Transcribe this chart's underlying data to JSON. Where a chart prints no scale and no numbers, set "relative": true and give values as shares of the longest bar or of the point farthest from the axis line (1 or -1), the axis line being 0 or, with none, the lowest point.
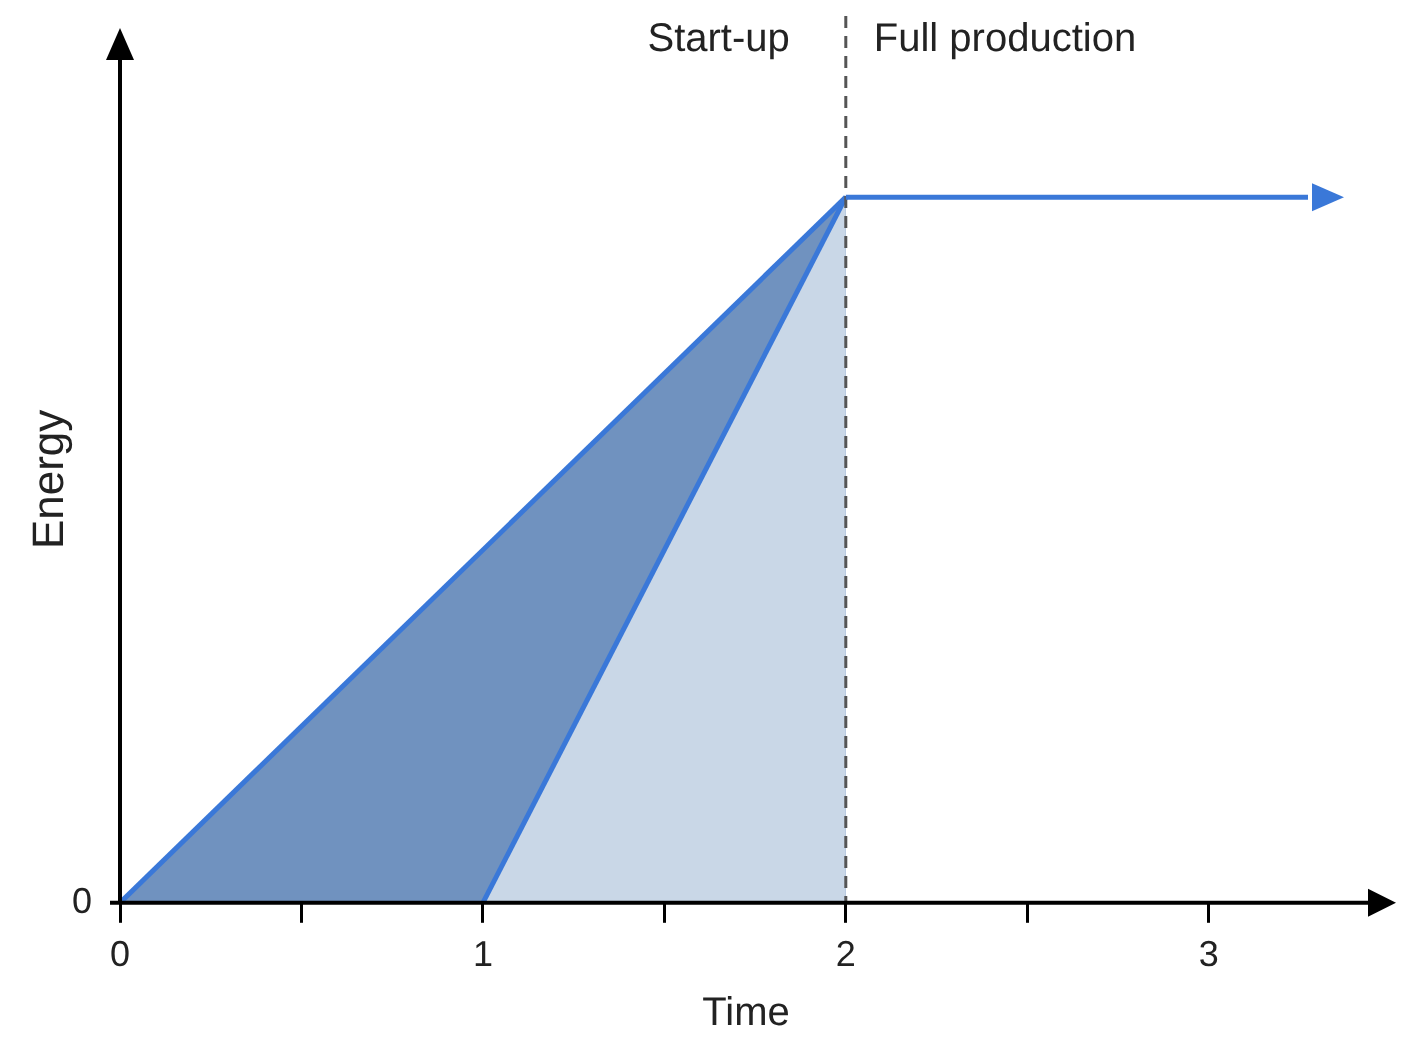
{
  "chart_data": {
    "type": "area",
    "xlabel": "Time",
    "ylabel": "Energy",
    "relative": true,
    "xlim": [
      0,
      3.45
    ],
    "xticks": [
      0,
      {
        "value": 0.5,
        "label": null
      },
      1,
      {
        "value": 1.5,
        "label": null
      },
      2,
      {
        "value": 2.5,
        "label": null
      },
      3
    ],
    "series": [
      {
        "color": "#7092bf",
        "x": [
          0,
          2
        ],
        "values": [
          0,
          1
        ]
      },
      {
        "color": "#c9d7e7",
        "x": [
          1,
          2
        ],
        "values": [
          0,
          1
        ]
      }
    ],
    "ref_lines": [
      {
        "axis": "x",
        "value": 2,
        "color": "#555555",
        "line_style": "dashed"
      }
    ],
    "annotations": [
      "Start-up",
      "Full production",
      {
        "text": "0",
        "x": 0,
        "y": 0
      }
    ],
    "grid": false,
    "legend": false,
    "marker": "none"
  }
}
